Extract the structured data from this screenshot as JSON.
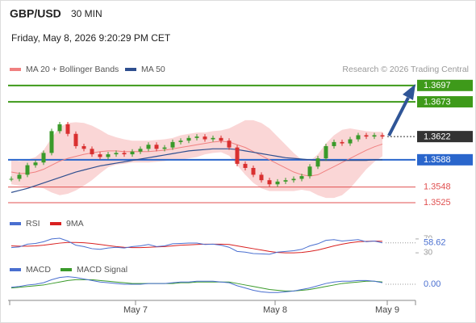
{
  "chart_data": {
    "type": "candlestick",
    "title": "GBP/USD",
    "timeframe": "30 MIN",
    "subtitle": "Friday, May 8, 2026 9:20:29 PM CET",
    "source": "Research © 2026 Trading Central",
    "xlim": [
      -0.2,
      50.1
    ],
    "xticks": [
      {
        "value": 15.4,
        "label": "May 7"
      },
      {
        "value": 32.7,
        "label": "May 8"
      },
      {
        "value": 46.6,
        "label": "May 9"
      }
    ],
    "ylim": [
      1.3512,
      1.3711
    ],
    "up_color": "#3a9a2a",
    "down_color": "#d93030",
    "close": [
      1.356,
      1.3566,
      1.358,
      1.3584,
      1.3598,
      1.363,
      1.364,
      1.3626,
      1.3608,
      1.3604,
      1.3596,
      1.3592,
      1.3596,
      1.3598,
      1.3596,
      1.36,
      1.3604,
      1.361,
      1.3604,
      1.3606,
      1.3614,
      1.3616,
      1.362,
      1.3622,
      1.3618,
      1.362,
      1.3616,
      1.3606,
      1.3582,
      1.3576,
      1.3566,
      1.3558,
      1.3552,
      1.3556,
      1.3558,
      1.356,
      1.3564,
      1.3578,
      1.359,
      1.3608,
      1.3614,
      1.3612,
      1.3618,
      1.3624,
      1.3622,
      1.3624,
      1.3622
    ],
    "series": [
      {
        "name": "MA 20 + Bollinger Bands",
        "color": "#f08080",
        "band_color": "#f9cccc",
        "values": [
          1.357,
          1.3568,
          1.3568,
          1.357,
          1.3574,
          1.358,
          1.3586,
          1.359,
          1.3593,
          1.3596,
          1.3598,
          1.36,
          1.3601,
          1.3601,
          1.36,
          1.36,
          1.36,
          1.36,
          1.3601,
          1.3602,
          1.3604,
          1.3606,
          1.3608,
          1.361,
          1.3612,
          1.3614,
          1.3615,
          1.3614,
          1.361,
          1.3606,
          1.36,
          1.3594,
          1.3588,
          1.3582,
          1.3576,
          1.357,
          1.3566,
          1.3564,
          1.3566,
          1.3572,
          1.3578,
          1.3584,
          1.359,
          1.3596,
          1.3602,
          1.3607,
          1.3611
        ],
        "upper": [
          1.3588,
          1.3586,
          1.3588,
          1.3592,
          1.3602,
          1.362,
          1.3636,
          1.3642,
          1.3643,
          1.3642,
          1.3638,
          1.3632,
          1.3625,
          1.3621,
          1.3618,
          1.3616,
          1.3616,
          1.3616,
          1.3617,
          1.3618,
          1.362,
          1.3624,
          1.3626,
          1.3628,
          1.3628,
          1.363,
          1.3631,
          1.3634,
          1.364,
          1.3646,
          1.3646,
          1.3642,
          1.3634,
          1.3622,
          1.361,
          1.3598,
          1.3588,
          1.3586,
          1.3596,
          1.3612,
          1.3624,
          1.3632,
          1.3634,
          1.3632,
          1.363,
          1.3629,
          1.3629
        ],
        "lower": [
          1.3552,
          1.355,
          1.3548,
          1.3548,
          1.3546,
          1.354,
          1.3536,
          1.3538,
          1.3543,
          1.355,
          1.3558,
          1.3568,
          1.3577,
          1.3581,
          1.3582,
          1.3584,
          1.3584,
          1.3584,
          1.3585,
          1.3586,
          1.3588,
          1.3588,
          1.359,
          1.3592,
          1.3596,
          1.3598,
          1.3599,
          1.3594,
          1.358,
          1.3566,
          1.3554,
          1.3546,
          1.3542,
          1.3542,
          1.3542,
          1.3542,
          1.3544,
          1.3542,
          1.3536,
          1.3532,
          1.3532,
          1.3536,
          1.3546,
          1.356,
          1.3574,
          1.3585,
          1.3593
        ]
      },
      {
        "name": "MA 50",
        "color": "#2f4f8f",
        "values": [
          1.354,
          1.3543,
          1.3546,
          1.355,
          1.3554,
          1.3558,
          1.3562,
          1.3566,
          1.357,
          1.3573,
          1.3576,
          1.3579,
          1.3581,
          1.3583,
          1.3585,
          1.3587,
          1.3589,
          1.3591,
          1.3593,
          1.3595,
          1.3597,
          1.3599,
          1.3601,
          1.3602,
          1.3603,
          1.3604,
          1.3604,
          1.3604,
          1.3603,
          1.3601,
          1.3599,
          1.3597,
          1.3595,
          1.3593,
          1.3591,
          1.359,
          1.3589,
          1.3588,
          1.3587,
          1.3587,
          1.3587,
          1.3587,
          1.3587,
          1.3587,
          1.3587,
          1.3588,
          1.3588
        ]
      }
    ],
    "levels": [
      {
        "value": 1.3697,
        "color": "#3e9a1a",
        "label_style": "box",
        "line": "solid"
      },
      {
        "value": 1.3673,
        "color": "#3e9a1a",
        "label_style": "box",
        "line": "solid"
      },
      {
        "value": 1.3622,
        "color": "#333333",
        "label_style": "box",
        "line": "dotted"
      },
      {
        "value": 1.3588,
        "color": "#2a66cc",
        "label_style": "box",
        "line": "solid"
      },
      {
        "value": 1.3548,
        "color": "#e05050",
        "label_style": "text",
        "line": "solid"
      },
      {
        "value": 1.3525,
        "color": "#e05050",
        "label_style": "text",
        "line": "solid"
      }
    ],
    "rsi": {
      "ylim": [
        0,
        100
      ],
      "yticks": [
        70,
        30
      ],
      "series": [
        {
          "name": "RSI",
          "color": "#4a6fd0",
          "values": [
            45,
            47,
            55,
            57,
            62,
            70,
            72,
            64,
            52,
            48,
            42,
            40,
            44,
            46,
            44,
            48,
            50,
            54,
            48,
            50,
            56,
            57,
            58,
            58,
            54,
            55,
            52,
            46,
            34,
            32,
            28,
            27,
            26,
            32,
            34,
            36,
            40,
            50,
            56,
            66,
            68,
            64,
            66,
            68,
            62,
            64,
            58.62
          ]
        },
        {
          "name": "9MA",
          "color": "#d92020",
          "values": [
            50,
            49,
            49,
            50,
            52,
            55,
            58,
            60,
            60,
            59,
            57,
            54,
            51,
            48,
            46,
            45,
            45,
            46,
            47,
            48,
            50,
            52,
            53,
            54,
            55,
            55,
            55,
            54,
            50,
            46,
            42,
            38,
            34,
            31,
            30,
            30,
            31,
            34,
            38,
            44,
            50,
            55,
            59,
            62,
            63,
            64,
            63
          ]
        }
      ]
    },
    "macd": {
      "ylim": [
        -0.0015,
        0.0015
      ],
      "yticks": [
        {
          "value": 0,
          "label": "0.00"
        }
      ],
      "series": [
        {
          "name": "MACD",
          "color": "#4a6fd0",
          "values": [
            -0.0004,
            -0.0003,
            -0.0001,
            0.0,
            0.0002,
            0.0006,
            0.0009,
            0.001,
            0.0009,
            0.0007,
            0.0005,
            0.0003,
            0.0002,
            0.0001,
            0.0,
            0.0,
            0.0,
            0.0001,
            0.0001,
            0.0001,
            0.0002,
            0.0003,
            0.0003,
            0.0004,
            0.0004,
            0.0004,
            0.0003,
            0.0002,
            -0.0002,
            -0.0005,
            -0.0008,
            -0.001,
            -0.0011,
            -0.0011,
            -0.001,
            -0.0009,
            -0.0007,
            -0.0005,
            -0.0002,
            0.0001,
            0.0003,
            0.0004,
            0.0004,
            0.0005,
            0.0005,
            0.0004,
            0.0002
          ]
        },
        {
          "name": "MACD Signal",
          "color": "#3a9a2a",
          "values": [
            -0.0005,
            -0.0004,
            -0.0003,
            -0.0002,
            -0.0001,
            0.0001,
            0.0003,
            0.0005,
            0.0006,
            0.0006,
            0.0006,
            0.0005,
            0.0004,
            0.0003,
            0.0002,
            0.0001,
            0.0001,
            0.0001,
            0.0001,
            0.0001,
            0.0001,
            0.0002,
            0.0002,
            0.0003,
            0.0003,
            0.0003,
            0.0003,
            0.0003,
            0.0001,
            -0.0001,
            -0.0003,
            -0.0005,
            -0.0007,
            -0.0008,
            -0.0009,
            -0.0009,
            -0.0008,
            -0.0007,
            -0.0005,
            -0.0003,
            -0.0001,
            0.0001,
            0.0002,
            0.0003,
            0.0004,
            0.0004,
            0.0003
          ]
        }
      ]
    }
  }
}
